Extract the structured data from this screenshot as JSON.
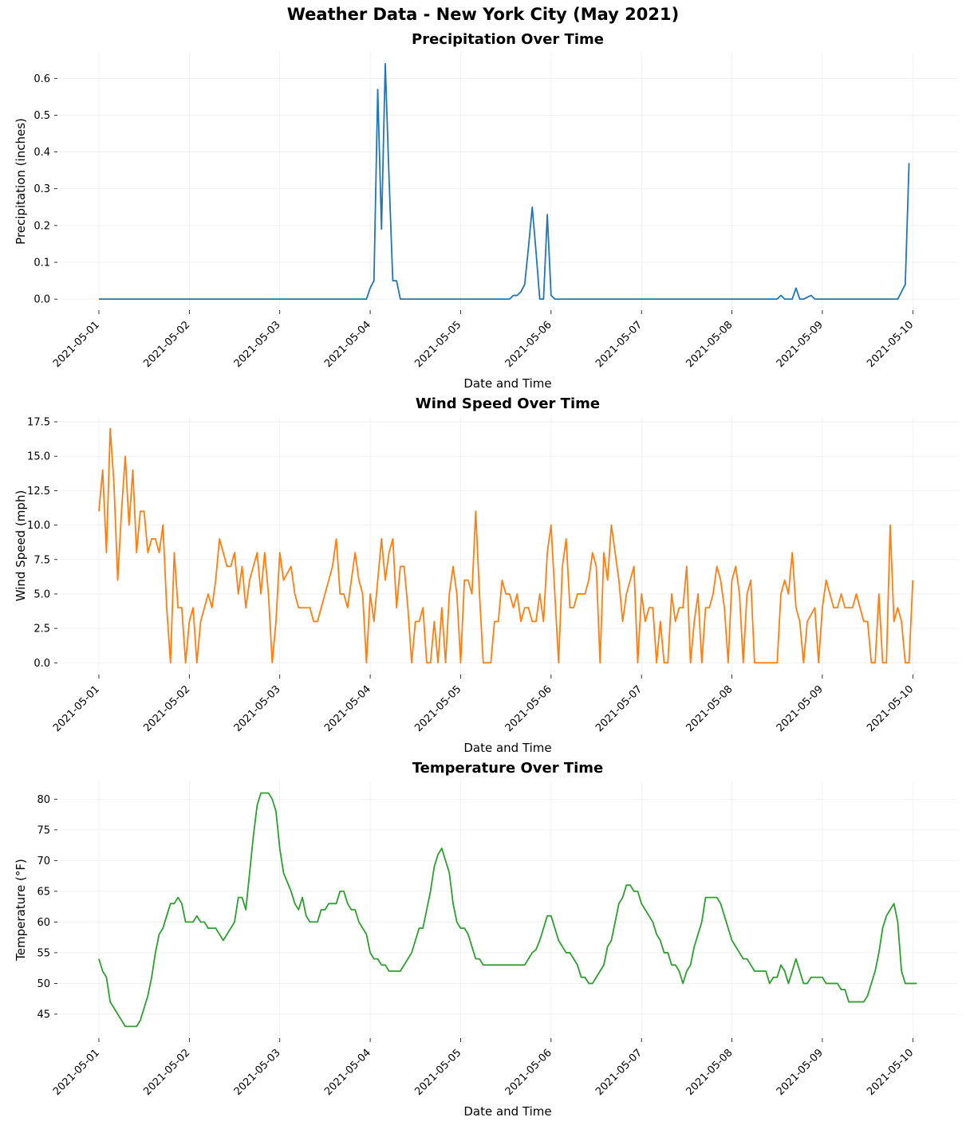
{
  "suptitle": "Weather Data - New York City (May 2021)",
  "chart_data": [
    {
      "type": "line",
      "title": "Precipitation Over Time",
      "xlabel": "Date and Time",
      "ylabel": "Precipitation (inches)",
      "x_range": [
        "2021-04-30T13:00",
        "2021-05-10T12:00"
      ],
      "ylim": [
        -0.03,
        0.67
      ],
      "yticks": [
        0.0,
        0.1,
        0.2,
        0.3,
        0.4,
        0.5,
        0.6
      ],
      "ytick_decimals": 1,
      "xticks": [
        "2021-05-01",
        "2021-05-02",
        "2021-05-03",
        "2021-05-04",
        "2021-05-05",
        "2021-05-06",
        "2021-05-07",
        "2021-05-08",
        "2021-05-09",
        "2021-05-10"
      ],
      "grid": true,
      "color": "#1f77b4",
      "points": [
        [
          "2021-05-01T00:00",
          0
        ],
        [
          "2021-05-03T23:00",
          0
        ],
        [
          "2021-05-04T00:00",
          0.03
        ],
        [
          "2021-05-04T01:00",
          0.05
        ],
        [
          "2021-05-04T02:00",
          0.57
        ],
        [
          "2021-05-04T03:00",
          0.19
        ],
        [
          "2021-05-04T04:00",
          0.64
        ],
        [
          "2021-05-04T05:00",
          0.33
        ],
        [
          "2021-05-04T06:00",
          0.05
        ],
        [
          "2021-05-04T07:00",
          0.05
        ],
        [
          "2021-05-04T08:00",
          0
        ],
        [
          "2021-05-05T13:00",
          0
        ],
        [
          "2021-05-05T14:00",
          0.01
        ],
        [
          "2021-05-05T15:00",
          0.01
        ],
        [
          "2021-05-05T16:00",
          0.02
        ],
        [
          "2021-05-05T17:00",
          0.04
        ],
        [
          "2021-05-05T18:00",
          0.14
        ],
        [
          "2021-05-05T19:00",
          0.25
        ],
        [
          "2021-05-05T20:00",
          0.13
        ],
        [
          "2021-05-05T21:00",
          0
        ],
        [
          "2021-05-05T22:00",
          0
        ],
        [
          "2021-05-05T23:00",
          0.23
        ],
        [
          "2021-05-06T00:00",
          0.01
        ],
        [
          "2021-05-06T01:00",
          0
        ],
        [
          "2021-05-08T12:00",
          0
        ],
        [
          "2021-05-08T13:00",
          0.01
        ],
        [
          "2021-05-08T14:00",
          0
        ],
        [
          "2021-05-08T15:00",
          0
        ],
        [
          "2021-05-08T16:00",
          0
        ],
        [
          "2021-05-08T17:00",
          0.03
        ],
        [
          "2021-05-08T18:00",
          0
        ],
        [
          "2021-05-08T19:00",
          0
        ],
        [
          "2021-05-08T20:00",
          0.005
        ],
        [
          "2021-05-08T21:00",
          0.01
        ],
        [
          "2021-05-08T22:00",
          0
        ],
        [
          "2021-05-09T20:00",
          0
        ],
        [
          "2021-05-09T21:00",
          0.02
        ],
        [
          "2021-05-09T22:00",
          0.04
        ],
        [
          "2021-05-09T23:00",
          0.37
        ]
      ]
    },
    {
      "type": "line",
      "title": "Wind Speed Over Time",
      "xlabel": "Date and Time",
      "ylabel": "Wind Speed (mph)",
      "x_range": [
        "2021-04-30T13:00",
        "2021-05-10T12:00"
      ],
      "ylim": [
        -0.85,
        17.85
      ],
      "yticks": [
        0.0,
        2.5,
        5.0,
        7.5,
        10.0,
        12.5,
        15.0,
        17.5
      ],
      "ytick_decimals": 1,
      "xticks": [
        "2021-05-01",
        "2021-05-02",
        "2021-05-03",
        "2021-05-04",
        "2021-05-05",
        "2021-05-06",
        "2021-05-07",
        "2021-05-08",
        "2021-05-09",
        "2021-05-10"
      ],
      "grid": true,
      "color": "#ff7f0e",
      "start": "2021-05-01T00:00",
      "step_hours": 1,
      "values": [
        11,
        14,
        8,
        17,
        13,
        6,
        11,
        15,
        10,
        14,
        8,
        11,
        11,
        8,
        9,
        9,
        8,
        10,
        4,
        0,
        8,
        4,
        4,
        0,
        3,
        4,
        0,
        3,
        4,
        5,
        4,
        6,
        9,
        8,
        7,
        7,
        8,
        5,
        7,
        4,
        6,
        7,
        8,
        5,
        8,
        5,
        0,
        3,
        8,
        6,
        6.5,
        7,
        5,
        4,
        4,
        4,
        4,
        3,
        3,
        4,
        5,
        6,
        7,
        9,
        5,
        5,
        4,
        6,
        8,
        6,
        5,
        0,
        5,
        3,
        6,
        9,
        6,
        8,
        9,
        4,
        7,
        7,
        4,
        0,
        3,
        3,
        4,
        0,
        0,
        3,
        0,
        4,
        0,
        5,
        7,
        5,
        0,
        6,
        6,
        5,
        11,
        5,
        0,
        0,
        0,
        3,
        3,
        6,
        5,
        5,
        4,
        5,
        3,
        4,
        4,
        3,
        3,
        5,
        3,
        8,
        10,
        5,
        0,
        7,
        9,
        4,
        4,
        5,
        5,
        5,
        6,
        8,
        7,
        0,
        8,
        6,
        10,
        8,
        6,
        3,
        5,
        6,
        7,
        0,
        5,
        3,
        4,
        4,
        0,
        3,
        0,
        0,
        5,
        3,
        4,
        4,
        7,
        0,
        3,
        5,
        0,
        4,
        4,
        5,
        7,
        6,
        4,
        0,
        6,
        7,
        5,
        0,
        5,
        6,
        0,
        0,
        0,
        0,
        0,
        0,
        0,
        5,
        6,
        5,
        8,
        4,
        3,
        0,
        3,
        3.5,
        4,
        0,
        4,
        6,
        5,
        4,
        4,
        5,
        4,
        4,
        4,
        5,
        4,
        3,
        3,
        0,
        0,
        5,
        0,
        0,
        10,
        3,
        4,
        3,
        0,
        0,
        6
      ]
    },
    {
      "type": "line",
      "title": "Temperature Over Time",
      "xlabel": "Date and Time",
      "ylabel": "Temperature (°F)",
      "x_range": [
        "2021-04-30T13:00",
        "2021-05-10T12:00"
      ],
      "ylim": [
        41.1,
        82.9
      ],
      "yticks": [
        45,
        50,
        55,
        60,
        65,
        70,
        75,
        80
      ],
      "ytick_decimals": 0,
      "xticks": [
        "2021-05-01",
        "2021-05-02",
        "2021-05-03",
        "2021-05-04",
        "2021-05-05",
        "2021-05-06",
        "2021-05-07",
        "2021-05-08",
        "2021-05-09",
        "2021-05-10"
      ],
      "grid": true,
      "color": "#2ca02c",
      "start": "2021-05-01T00:00",
      "step_hours": 1,
      "values": [
        54,
        52,
        51,
        47,
        46,
        45,
        44,
        43,
        43,
        43,
        43,
        44,
        46,
        48,
        51,
        55,
        58,
        59,
        61,
        63,
        63,
        64,
        63,
        60,
        60,
        60,
        61,
        60,
        60,
        59,
        59,
        59,
        58,
        57,
        58,
        59,
        60,
        64,
        64,
        62,
        68,
        74,
        79,
        81,
        81,
        81,
        80,
        78,
        72,
        68,
        66.5,
        65,
        63,
        62,
        64,
        61,
        60,
        60,
        60,
        62,
        62,
        63,
        63,
        63,
        65,
        65,
        63,
        62,
        62,
        60,
        59,
        58,
        55,
        54,
        54,
        53,
        53,
        52,
        52,
        52,
        52,
        53,
        54,
        55,
        57,
        59,
        59,
        62,
        65,
        69,
        71,
        72,
        70,
        68,
        63,
        60,
        59,
        59,
        58,
        56,
        54,
        54,
        53,
        53,
        53,
        53,
        53,
        53,
        53,
        53,
        53,
        53,
        53,
        53,
        54,
        55,
        55.5,
        57,
        59,
        61,
        61,
        59,
        57,
        56,
        55,
        55,
        54,
        53,
        51,
        51,
        50,
        50,
        51,
        52,
        53,
        56,
        57,
        60,
        63,
        64,
        66,
        66,
        65,
        65,
        63,
        62,
        61,
        60,
        58,
        57,
        55,
        55,
        53,
        53,
        52,
        50,
        52,
        53,
        56,
        58,
        60,
        64,
        64,
        64,
        64,
        63,
        61,
        59,
        57,
        56,
        55,
        54,
        54,
        53,
        52,
        52,
        52,
        52,
        50,
        51,
        51,
        53,
        52,
        50,
        52,
        54,
        52,
        50,
        50,
        51,
        51,
        51,
        51,
        50,
        50,
        50,
        50,
        49,
        49,
        47,
        47,
        47,
        47,
        47,
        48,
        50,
        52,
        55,
        59,
        61,
        62,
        63,
        60,
        52,
        50,
        50,
        50,
        50
      ]
    }
  ]
}
